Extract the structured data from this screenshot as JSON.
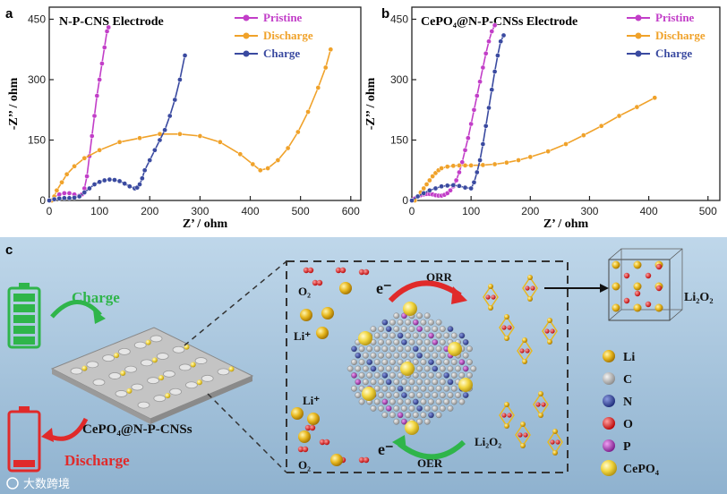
{
  "panels": {
    "a": {
      "letter": "a"
    },
    "b": {
      "letter": "b"
    },
    "c": {
      "letter": "c"
    }
  },
  "colors": {
    "pristine": "#c23ec8",
    "discharge": "#f0a22a",
    "charge": "#3a4aa0",
    "axis": "#222222"
  },
  "chart_data": [
    {
      "type": "scatter",
      "title": "N-P-CNS Electrode",
      "xlabel": "Z’ / ohm",
      "ylabel": "-Z’’ / ohm",
      "xlim": [
        0,
        620
      ],
      "ylim": [
        0,
        480
      ],
      "xticks": [
        0,
        100,
        200,
        300,
        400,
        500,
        600
      ],
      "yticks": [
        0,
        150,
        300,
        450
      ],
      "legend": [
        "Pristine",
        "Discharge",
        "Charge"
      ],
      "series": [
        {
          "name": "Pristine",
          "x": [
            0,
            10,
            20,
            30,
            40,
            50,
            60,
            65,
            70,
            75,
            80,
            85,
            90,
            95,
            100,
            105,
            110,
            115,
            118
          ],
          "y": [
            0,
            8,
            15,
            18,
            18,
            15,
            12,
            15,
            30,
            60,
            110,
            160,
            210,
            260,
            300,
            340,
            380,
            420,
            430
          ]
        },
        {
          "name": "Discharge",
          "x": [
            5,
            10,
            15,
            25,
            35,
            50,
            70,
            100,
            140,
            180,
            220,
            260,
            300,
            340,
            380,
            405,
            420,
            435,
            455,
            475,
            495,
            515,
            535,
            550,
            560
          ],
          "y": [
            0,
            10,
            25,
            45,
            65,
            85,
            105,
            125,
            145,
            155,
            165,
            165,
            160,
            145,
            115,
            90,
            75,
            80,
            100,
            130,
            170,
            220,
            280,
            330,
            375
          ]
        },
        {
          "name": "Charge",
          "x": [
            0,
            10,
            20,
            30,
            40,
            50,
            60,
            70,
            80,
            90,
            100,
            110,
            120,
            130,
            140,
            150,
            160,
            170,
            175,
            180,
            185,
            190,
            200,
            210,
            220,
            230,
            240,
            250,
            260,
            270
          ],
          "y": [
            0,
            3,
            5,
            6,
            6,
            7,
            10,
            20,
            30,
            40,
            46,
            50,
            52,
            51,
            48,
            42,
            35,
            30,
            32,
            40,
            55,
            75,
            100,
            125,
            150,
            175,
            210,
            250,
            300,
            360
          ]
        }
      ]
    },
    {
      "type": "scatter",
      "title": "CePO₄@N-P-CNSs Electrode",
      "xlabel": "Z’ / ohm",
      "ylabel": "-Z’’ / ohm",
      "xlim": [
        0,
        520
      ],
      "ylim": [
        0,
        480
      ],
      "xticks": [
        0,
        100,
        200,
        300,
        400,
        500
      ],
      "yticks": [
        0,
        150,
        300,
        450
      ],
      "legend": [
        "Pristine",
        "Discharge",
        "Charge"
      ],
      "series": [
        {
          "name": "Pristine",
          "x": [
            0,
            5,
            10,
            15,
            20,
            25,
            30,
            35,
            40,
            45,
            50,
            55,
            60,
            65,
            70,
            75,
            80,
            85,
            90,
            95,
            100,
            105,
            110,
            115,
            120,
            125,
            130,
            135,
            140
          ],
          "y": [
            0,
            5,
            10,
            13,
            15,
            16,
            16,
            15,
            13,
            12,
            12,
            14,
            18,
            25,
            35,
            50,
            70,
            95,
            125,
            155,
            190,
            225,
            260,
            295,
            330,
            365,
            395,
            420,
            435
          ]
        },
        {
          "name": "Discharge",
          "x": [
            5,
            10,
            15,
            20,
            25,
            30,
            35,
            40,
            45,
            50,
            60,
            70,
            80,
            90,
            100,
            120,
            140,
            160,
            180,
            200,
            230,
            260,
            290,
            320,
            350,
            380,
            410
          ],
          "y": [
            0,
            10,
            20,
            30,
            40,
            50,
            60,
            68,
            75,
            80,
            84,
            86,
            87,
            87,
            87,
            88,
            90,
            94,
            100,
            108,
            122,
            140,
            162,
            185,
            210,
            232,
            255
          ]
        },
        {
          "name": "Charge",
          "x": [
            0,
            10,
            20,
            30,
            40,
            50,
            60,
            70,
            80,
            90,
            100,
            105,
            110,
            115,
            120,
            125,
            130,
            135,
            140,
            145,
            150,
            155
          ],
          "y": [
            0,
            10,
            18,
            25,
            30,
            35,
            37,
            38,
            36,
            32,
            30,
            45,
            70,
            100,
            140,
            185,
            230,
            275,
            320,
            360,
            395,
            410
          ]
        }
      ]
    }
  ],
  "schematic": {
    "charge_label": "Charge",
    "discharge_label": "Discharge",
    "electrode_label": "CePO₄@N-P-CNSs",
    "o2_label": "O₂",
    "li_plus_label": "Li⁺",
    "electron_label": "e⁻",
    "orr_label": "ORR",
    "oer_label": "OER",
    "li2o2_label": "Li₂O₂",
    "legend": [
      {
        "name": "Li",
        "color": "#e9b820"
      },
      {
        "name": "C",
        "color": "#a8a8a8"
      },
      {
        "name": "N",
        "color": "#3a4aa8"
      },
      {
        "name": "O",
        "color": "#e32a2a"
      },
      {
        "name": "P",
        "color": "#b640c0"
      },
      {
        "name": "CePO₄",
        "color": "#f2d640"
      }
    ]
  },
  "watermark": "大数跨境"
}
